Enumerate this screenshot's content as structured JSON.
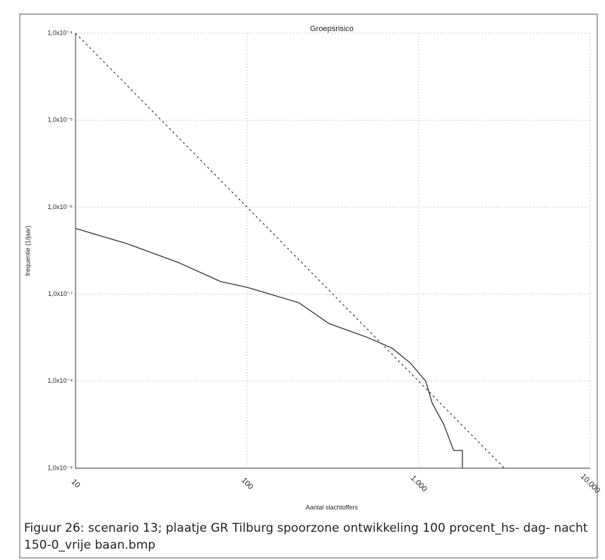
{
  "chart_data": {
    "type": "line",
    "title": "Groepsrisico",
    "x_label": "Aantal slachtoffers",
    "y_label": "frequentie (1/jaar)",
    "log_x": true,
    "log_y": true,
    "grid": true,
    "xlim": [
      10,
      10000
    ],
    "ylim": [
      1e-09,
      0.0001
    ],
    "xticks": [
      10,
      100,
      {
        "value": 1000,
        "label": "1.000"
      },
      {
        "value": 10000,
        "label": "10.000"
      }
    ],
    "yticks": [
      {
        "value": 1e-09,
        "label": "1,0x10⁻⁹"
      },
      {
        "value": 1e-08,
        "label": "1,0x10⁻⁸"
      },
      {
        "value": 1e-07,
        "label": "1,0x10⁻⁷"
      },
      {
        "value": 1e-06,
        "label": "1,0x10⁻⁶"
      },
      {
        "value": 1e-05,
        "label": "1,0x10⁻⁵"
      },
      {
        "value": 0.0001,
        "label": "1,0x10⁻⁴"
      }
    ],
    "series": [
      {
        "color": "#444",
        "dash": true,
        "x": [
          10,
          3162
        ],
        "values": [
          0.0001,
          1e-09
        ]
      },
      {
        "color": "#333",
        "dash": false,
        "x": [
          10,
          20,
          40,
          70,
          100,
          200,
          300,
          500,
          700,
          900,
          1100,
          1200,
          1400,
          1600,
          1800,
          1800
        ],
        "values": [
          5.7e-07,
          3.8e-07,
          2.3e-07,
          1.4e-07,
          1.2e-07,
          8e-08,
          4.6e-08,
          3.2e-08,
          2.4e-08,
          1.6e-08,
          1e-08,
          5.6e-09,
          3.2e-09,
          1.6e-09,
          1.6e-09,
          1e-09
        ]
      }
    ]
  },
  "caption": "Figuur 26: scenario 13; plaatje GR Tilburg spoorzone ontwikkeling 100 procent_hs- dag- nacht 150-0_vrije baan.bmp"
}
